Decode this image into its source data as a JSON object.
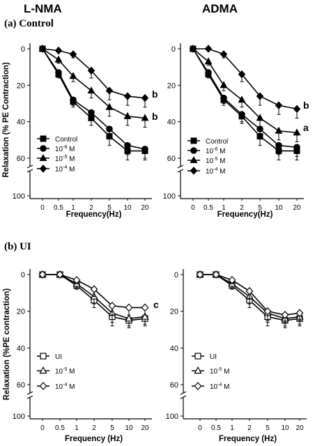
{
  "headers": {
    "left": "L-NMA",
    "right": "ADMA"
  },
  "sections": {
    "a": "(a) Control",
    "b": "(b) UI"
  },
  "chart_data": [
    {
      "type": "line",
      "panel": "a-left",
      "ylabel": "Relaxation (% PE Contraction)",
      "xlabel": "Frequency(Hz)",
      "categories": [
        "0",
        "0.5",
        "1",
        "2",
        "5",
        "10",
        "20"
      ],
      "yticks": [
        "0",
        "20",
        "40",
        "60",
        "100"
      ],
      "ylim": [
        0,
        65
      ],
      "y_break": true,
      "y_inverted": true,
      "series": [
        {
          "name": "Control",
          "marker": "square-filled",
          "values": [
            0,
            14,
            29,
            38,
            48,
            56,
            56
          ],
          "errors": [
            1,
            2,
            3,
            4,
            5,
            5,
            5
          ]
        },
        {
          "name": "10-6 M",
          "label_base": "10",
          "label_exp": "-6",
          "label_unit": "M",
          "marker": "circle-filled",
          "values": [
            0,
            13,
            28,
            35,
            44,
            53,
            55
          ],
          "errors": [
            1,
            2,
            3,
            4,
            5,
            5,
            5
          ]
        },
        {
          "name": "10-5 M",
          "label_base": "10",
          "label_exp": "-5",
          "label_unit": "M",
          "marker": "triangle-filled",
          "values": [
            0,
            6,
            15,
            23,
            32,
            37,
            38
          ],
          "errors": [
            1,
            2,
            3,
            4,
            5,
            5,
            5
          ]
        },
        {
          "name": "10-4 M",
          "label_base": "10",
          "label_exp": "-4",
          "label_unit": "M",
          "marker": "diamond-filled",
          "values": [
            0,
            1,
            3,
            12,
            23,
            26,
            27
          ],
          "errors": [
            0.5,
            1,
            2,
            4,
            5,
            5,
            5
          ]
        }
      ],
      "annotations": [
        {
          "text": "b",
          "series": 3
        },
        {
          "text": "b",
          "series": 2
        }
      ]
    },
    {
      "type": "line",
      "panel": "a-right",
      "ylabel": "",
      "xlabel": "Frequency(Hz)",
      "categories": [
        "0",
        "0.5",
        "1",
        "2",
        "5",
        "10",
        "20"
      ],
      "yticks": [
        "0",
        "20",
        "40",
        "60",
        "100"
      ],
      "ylim": [
        0,
        65
      ],
      "y_break": true,
      "y_inverted": true,
      "series": [
        {
          "name": "Control",
          "marker": "square-filled",
          "values": [
            0,
            14,
            28,
            37,
            48,
            56,
            56
          ],
          "errors": [
            1,
            2,
            3,
            4,
            5,
            5,
            5
          ]
        },
        {
          "name": "10-6 M",
          "label_base": "10",
          "label_exp": "-6",
          "label_unit": "M",
          "marker": "circle-filled",
          "values": [
            0,
            13,
            27,
            36,
            44,
            53,
            54
          ],
          "errors": [
            1,
            2,
            3,
            4,
            5,
            5,
            5
          ]
        },
        {
          "name": "10-5 M",
          "label_base": "10",
          "label_exp": "-5",
          "label_unit": "M",
          "marker": "triangle-filled",
          "values": [
            0,
            7,
            20,
            28,
            38,
            45,
            46
          ],
          "errors": [
            1,
            2,
            3,
            4,
            5,
            5,
            5
          ]
        },
        {
          "name": "10-4 M",
          "label_base": "10",
          "label_exp": "-4",
          "label_unit": "M",
          "marker": "diamond-filled",
          "values": [
            0,
            0,
            3,
            14,
            26,
            31,
            33
          ],
          "errors": [
            0.5,
            1,
            2,
            4,
            5,
            5,
            5
          ]
        }
      ],
      "annotations": [
        {
          "text": "b",
          "series": 3
        },
        {
          "text": "a",
          "series": 2
        }
      ]
    },
    {
      "type": "line",
      "panel": "b-left",
      "ylabel": "Relaxation (%PE contraction)",
      "xlabel": "Frequency (Hz)",
      "categories": [
        "0",
        "0.5",
        "1",
        "2",
        "5",
        "10",
        "20"
      ],
      "yticks": [
        "0",
        "20",
        "40",
        "60",
        "100"
      ],
      "ylim": [
        0,
        65
      ],
      "y_break": true,
      "y_inverted": true,
      "series": [
        {
          "name": "UI",
          "marker": "square-open",
          "values": [
            0,
            0,
            6,
            14,
            23,
            25,
            24
          ],
          "errors": [
            0.5,
            1,
            2,
            4,
            5,
            4,
            4
          ]
        },
        {
          "name": "10-5 M",
          "label_base": "10",
          "label_exp": "-5",
          "label_unit": "M",
          "marker": "triangle-open",
          "values": [
            0,
            0,
            5,
            12,
            21,
            24,
            23
          ],
          "errors": [
            0.5,
            1,
            2,
            4,
            5,
            4,
            4
          ]
        },
        {
          "name": "10-4 M",
          "label_base": "10",
          "label_exp": "-4",
          "label_unit": "M",
          "marker": "diamond-open",
          "values": [
            0,
            0,
            3,
            8,
            17,
            18,
            18
          ],
          "errors": [
            0.5,
            1,
            2,
            4,
            5,
            4,
            4
          ]
        }
      ],
      "annotations": [
        {
          "text": "c",
          "series": 2
        }
      ]
    },
    {
      "type": "line",
      "panel": "b-right",
      "ylabel": "",
      "xlabel": "Frequency (Hz)",
      "categories": [
        "0",
        "0.5",
        "1",
        "2",
        "5",
        "10",
        "20"
      ],
      "yticks": [
        "0",
        "20",
        "40",
        "60",
        "100"
      ],
      "ylim": [
        0,
        65
      ],
      "y_break": true,
      "y_inverted": true,
      "series": [
        {
          "name": "UI",
          "marker": "square-open",
          "values": [
            0,
            0,
            6,
            14,
            23,
            25,
            24
          ],
          "errors": [
            0.5,
            1,
            2,
            4,
            5,
            4,
            4
          ]
        },
        {
          "name": "10-5 M",
          "label_base": "10",
          "label_exp": "-5",
          "label_unit": "M",
          "marker": "triangle-open",
          "values": [
            0,
            0,
            5,
            12,
            21,
            24,
            23
          ],
          "errors": [
            0.5,
            1,
            2,
            4,
            5,
            4,
            4
          ]
        },
        {
          "name": "10-4 M",
          "label_base": "10",
          "label_exp": "-4",
          "label_unit": "M",
          "marker": "diamond-open",
          "values": [
            0,
            0,
            3,
            9,
            20,
            22,
            21
          ],
          "errors": [
            0.5,
            1,
            2,
            4,
            5,
            4,
            4
          ]
        }
      ],
      "annotations": []
    }
  ]
}
